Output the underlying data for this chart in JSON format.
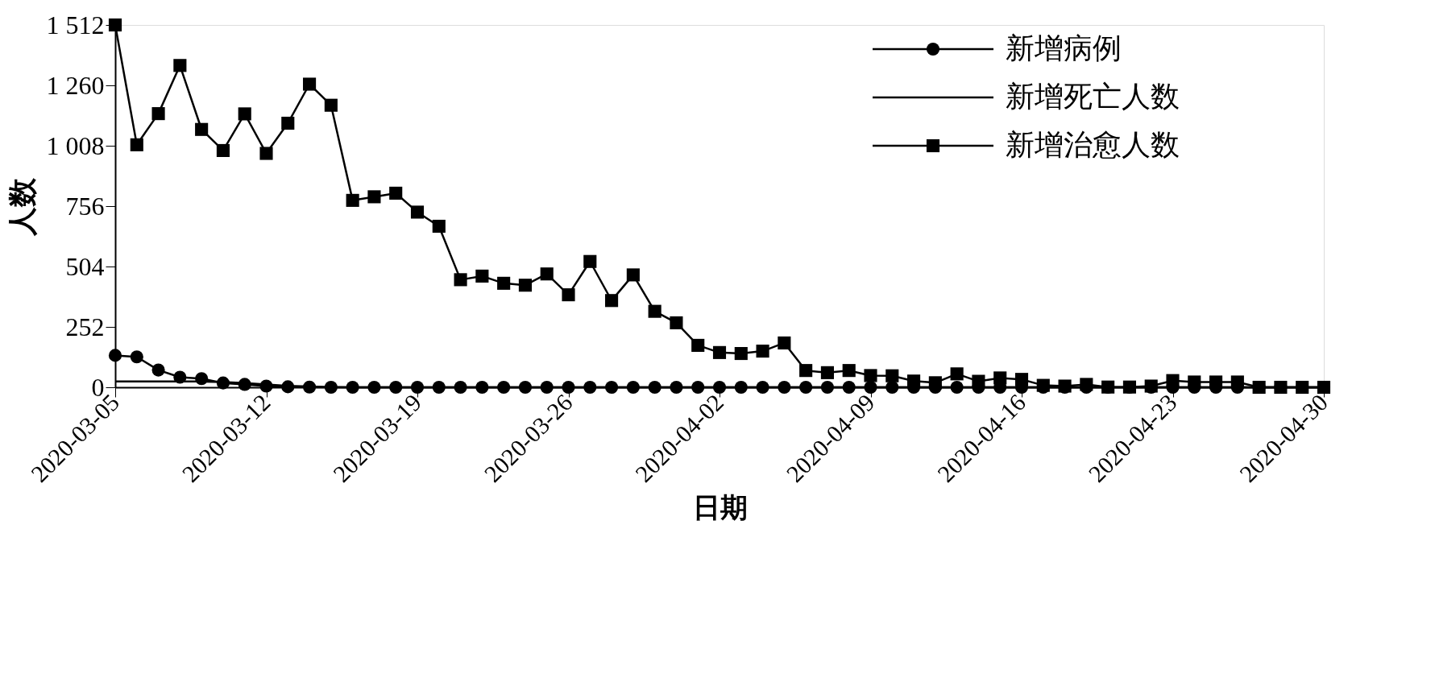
{
  "chart_data": {
    "type": "line",
    "xlabel": "日期",
    "ylabel": "人数",
    "legend": "top right",
    "grid": false,
    "line_style": "solid",
    "x": [
      "2020-03-05",
      "2020-03-06",
      "2020-03-07",
      "2020-03-08",
      "2020-03-09",
      "2020-03-10",
      "2020-03-11",
      "2020-03-12",
      "2020-03-13",
      "2020-03-14",
      "2020-03-15",
      "2020-03-16",
      "2020-03-17",
      "2020-03-18",
      "2020-03-19",
      "2020-03-20",
      "2020-03-21",
      "2020-03-22",
      "2020-03-23",
      "2020-03-24",
      "2020-03-25",
      "2020-03-26",
      "2020-03-27",
      "2020-03-28",
      "2020-03-29",
      "2020-03-30",
      "2020-03-31",
      "2020-04-01",
      "2020-04-02",
      "2020-04-03",
      "2020-04-04",
      "2020-04-05",
      "2020-04-06",
      "2020-04-07",
      "2020-04-08",
      "2020-04-09",
      "2020-04-10",
      "2020-04-11",
      "2020-04-12",
      "2020-04-13",
      "2020-04-14",
      "2020-04-15",
      "2020-04-16",
      "2020-04-17",
      "2020-04-18",
      "2020-04-19",
      "2020-04-20",
      "2020-04-21",
      "2020-04-22",
      "2020-04-23",
      "2020-04-24",
      "2020-04-25",
      "2020-04-26",
      "2020-04-27",
      "2020-04-28",
      "2020-04-29",
      "2020-04-30"
    ],
    "series": [
      {
        "name": "新增病例",
        "color": "#000000",
        "marker": "circle",
        "values": [
          133,
          127,
          72,
          42,
          36,
          18,
          12,
          5,
          2,
          1,
          0,
          0,
          0,
          0,
          0,
          0,
          0,
          0,
          0,
          0,
          0,
          0,
          0,
          0,
          0,
          0,
          0,
          0,
          0,
          0,
          0,
          0,
          0,
          0,
          0,
          0,
          0,
          0,
          0,
          0,
          0,
          0,
          0,
          0,
          0,
          0,
          0,
          0,
          0,
          0,
          0,
          0,
          0,
          0,
          0,
          0,
          0
        ]
      },
      {
        "name": "新增死亡人数",
        "color": "#000000",
        "marker": "none",
        "values": [
          24,
          24,
          24,
          24,
          24,
          22,
          18,
          12,
          6,
          3,
          1,
          0,
          0,
          0,
          0,
          0,
          0,
          0,
          0,
          0,
          0,
          0,
          0,
          0,
          0,
          0,
          0,
          0,
          0,
          0,
          0,
          0,
          0,
          0,
          0,
          0,
          0,
          0,
          0,
          0,
          0,
          0,
          0,
          0,
          0,
          0,
          0,
          0,
          0,
          0,
          0,
          0,
          0,
          0,
          0,
          0,
          0
        ]
      },
      {
        "name": "新增治愈人数",
        "color": "#000000",
        "marker": "square",
        "values": [
          1512,
          1012,
          1142,
          1343,
          1076,
          988,
          1141,
          976,
          1102,
          1265,
          1177,
          780,
          795,
          810,
          731,
          672,
          449,
          464,
          434,
          426,
          473,
          386,
          525,
          362,
          469,
          317,
          269,
          175,
          145,
          141,
          151,
          185,
          70,
          61,
          70,
          49,
          48,
          26,
          19,
          56,
          25,
          39,
          33,
          8,
          5,
          12,
          1,
          1,
          5,
          28,
          22,
          22,
          22,
          0,
          0,
          0,
          0
        ]
      }
    ],
    "xlim": [
      "2020-03-05",
      "2020-04-30"
    ],
    "xticks": [
      "2020-03-05",
      "2020-03-12",
      "2020-03-19",
      "2020-03-26",
      "2020-04-02",
      "2020-04-09",
      "2020-04-16",
      "2020-04-23",
      "2020-04-30"
    ],
    "ylim": [
      0,
      1512
    ],
    "yticks": [
      0,
      252,
      504,
      756,
      {
        "value": 1008,
        "label": "1 008"
      },
      {
        "value": 1260,
        "label": "1 260"
      },
      {
        "value": 1512,
        "label": "1 512"
      }
    ]
  }
}
